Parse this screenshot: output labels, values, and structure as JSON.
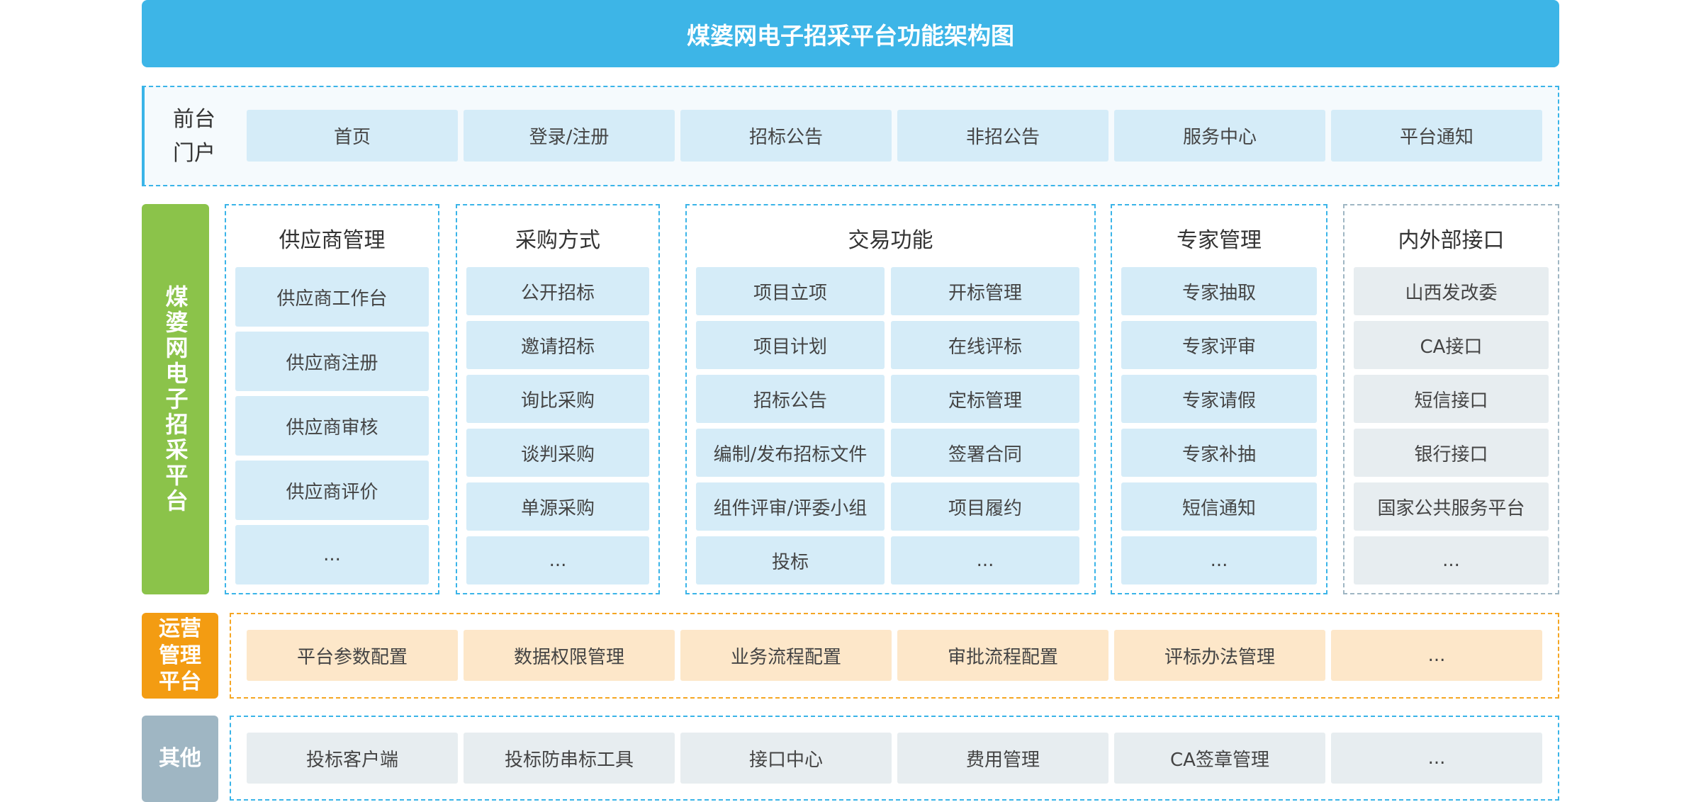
{
  "title": "煤婆网电子招采平台功能架构图",
  "frontend": {
    "label": "前台门户",
    "items": [
      "首页",
      "登录/注册",
      "招标公告",
      "非招公告",
      "服务中心",
      "平台通知"
    ]
  },
  "platform": {
    "label": "煤婆网电子招采平台",
    "columns": [
      {
        "title": "供应商管理",
        "items": [
          "供应商工作台",
          "供应商注册",
          "供应商审核",
          "供应商评价",
          "..."
        ]
      },
      {
        "title": "采购方式",
        "items": [
          "公开招标",
          "邀请招标",
          "询比采购",
          "谈判采购",
          "单源采购",
          "..."
        ]
      },
      {
        "title": "交易功能",
        "items": [
          "项目立项",
          "开标管理",
          "项目计划",
          "在线评标",
          "招标公告",
          "定标管理",
          "编制/发布招标文件",
          "签署合同",
          "组件评审/评委小组",
          "项目履约",
          "投标",
          "..."
        ]
      },
      {
        "title": "专家管理",
        "items": [
          "专家抽取",
          "专家评审",
          "专家请假",
          "专家补抽",
          "短信通知",
          "..."
        ]
      },
      {
        "title": "内外部接口",
        "items": [
          "山西发改委",
          "CA接口",
          "短信接口",
          "银行接口",
          "国家公共服务平台",
          "..."
        ]
      }
    ]
  },
  "operations": {
    "label": "运营管理平台",
    "items": [
      "平台参数配置",
      "数据权限管理",
      "业务流程配置",
      "审批流程配置",
      "评标办法管理",
      "..."
    ]
  },
  "other": {
    "label": "其他",
    "items": [
      "投标客户端",
      "投标防串标工具",
      "接口中心",
      "费用管理",
      "CA签章管理",
      "..."
    ]
  },
  "colors": {
    "title": "#3db5e7",
    "platform": "#8bc34a",
    "operations": "#f39c12",
    "other": "#9fb6c3"
  }
}
